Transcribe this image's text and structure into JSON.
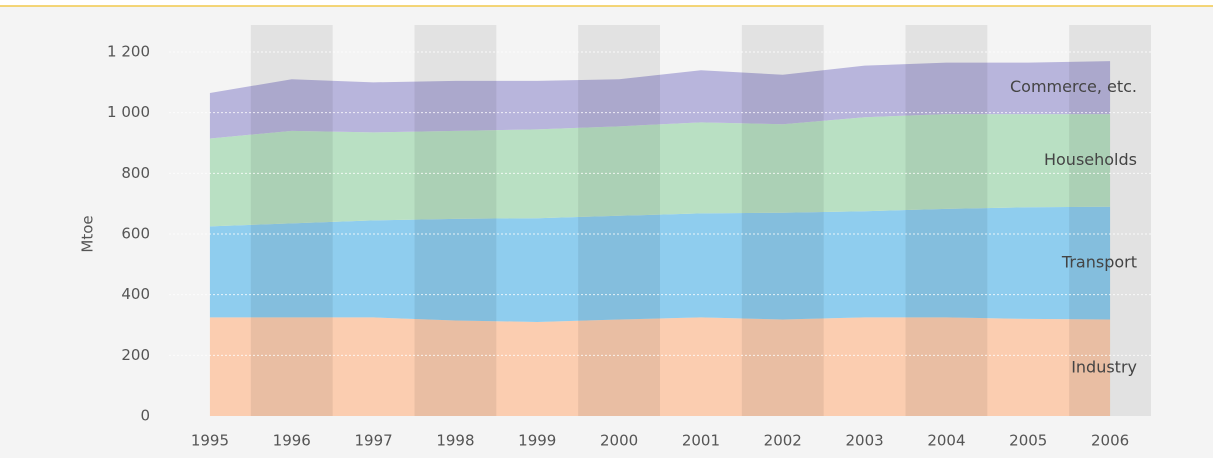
{
  "chart_data": {
    "type": "stacked_area",
    "y_label": "Mtoe",
    "categories": [
      "1995",
      "1996",
      "1997",
      "1998",
      "1999",
      "2000",
      "2001",
      "2002",
      "2003",
      "2004",
      "2005",
      "2006"
    ],
    "series": [
      {
        "name": "Industry",
        "color": "#fbcdb0",
        "values": [
          325,
          325,
          325,
          315,
          310,
          318,
          325,
          318,
          325,
          325,
          320,
          318
        ]
      },
      {
        "name": "Transport",
        "color": "#8fcdee",
        "values": [
          300,
          310,
          320,
          335,
          342,
          342,
          343,
          352,
          350,
          358,
          368,
          372
        ]
      },
      {
        "name": "Households",
        "color": "#b9e0c3",
        "values": [
          290,
          305,
          290,
          290,
          293,
          295,
          300,
          292,
          310,
          312,
          307,
          305
        ]
      },
      {
        "name": "Commerce, etc.",
        "color": "#b8b5dc",
        "values": [
          150,
          170,
          165,
          165,
          160,
          155,
          172,
          163,
          170,
          170,
          170,
          175
        ]
      }
    ],
    "ylim": [
      0,
      1200
    ],
    "yticks": [
      0,
      200,
      400,
      600,
      800,
      {
        "value": 1000,
        "label": "1 000"
      },
      {
        "value": 1200,
        "label": "1 200"
      }
    ],
    "grid": true
  }
}
